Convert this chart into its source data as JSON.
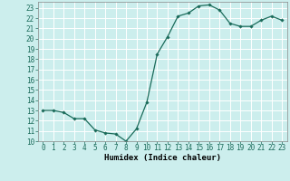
{
  "x": [
    0,
    1,
    2,
    3,
    4,
    5,
    6,
    7,
    8,
    9,
    10,
    11,
    12,
    13,
    14,
    15,
    16,
    17,
    18,
    19,
    20,
    21,
    22,
    23
  ],
  "y": [
    13,
    13,
    12.8,
    12.2,
    12.2,
    11.1,
    10.8,
    10.7,
    10,
    11.2,
    13.8,
    18.5,
    20.2,
    22.2,
    22.5,
    23.2,
    23.3,
    22.8,
    21.5,
    21.2,
    21.2,
    21.8,
    22.2,
    21.8
  ],
  "line_color": "#1a6b5a",
  "marker": "D",
  "marker_size": 1.8,
  "bg_color": "#cceeed",
  "grid_color": "#ffffff",
  "xlabel": "Humidex (Indice chaleur)",
  "xlim": [
    -0.5,
    23.5
  ],
  "ylim": [
    10,
    23.6
  ],
  "yticks": [
    10,
    11,
    12,
    13,
    14,
    15,
    16,
    17,
    18,
    19,
    20,
    21,
    22,
    23
  ],
  "xticks": [
    0,
    1,
    2,
    3,
    4,
    5,
    6,
    7,
    8,
    9,
    10,
    11,
    12,
    13,
    14,
    15,
    16,
    17,
    18,
    19,
    20,
    21,
    22,
    23
  ],
  "label_fontsize": 6.5,
  "tick_fontsize": 5.5,
  "linewidth": 0.9
}
